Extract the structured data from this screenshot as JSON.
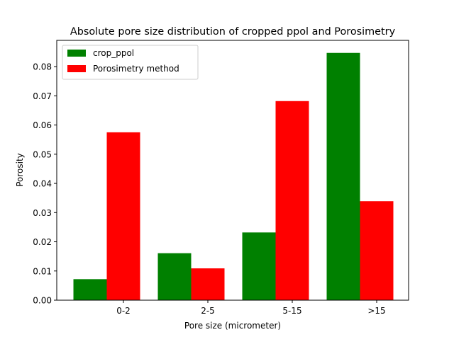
{
  "chart_data": {
    "type": "bar",
    "title": "Absolute pore size distribution of cropped ppol and Porosimetry",
    "xlabel": "Pore size (micrometer)",
    "ylabel": "Porosity",
    "categories": [
      "0-2",
      "2-5",
      "5-15",
      ">15"
    ],
    "series": [
      {
        "name": "crop_ppol",
        "color": "#008000",
        "values": [
          0.0072,
          0.0161,
          0.0232,
          0.0847
        ]
      },
      {
        "name": "Porosimetry method",
        "color": "#ff0000",
        "values": [
          0.0575,
          0.0109,
          0.0682,
          0.0339
        ]
      }
    ],
    "ylim": [
      0,
      0.089
    ],
    "yticks": [
      "0.00",
      "0.01",
      "0.02",
      "0.03",
      "0.04",
      "0.05",
      "0.06",
      "0.07",
      "0.08"
    ],
    "grid": false,
    "legend_position": "top-left"
  }
}
